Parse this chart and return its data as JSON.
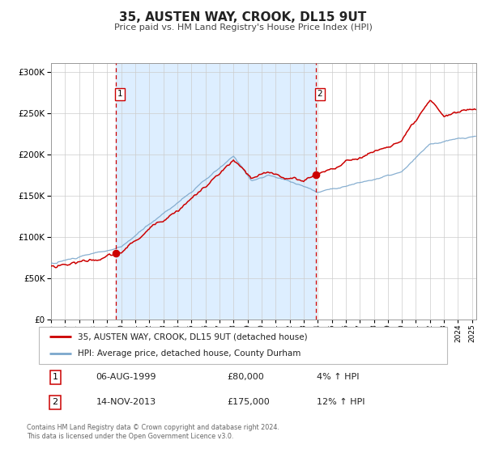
{
  "title": "35, AUSTEN WAY, CROOK, DL15 9UT",
  "subtitle": "Price paid vs. HM Land Registry's House Price Index (HPI)",
  "legend_line1": "35, AUSTEN WAY, CROOK, DL15 9UT (detached house)",
  "legend_line2": "HPI: Average price, detached house, County Durham",
  "sale1_label": "1",
  "sale1_date": "06-AUG-1999",
  "sale1_price": "£80,000",
  "sale1_hpi": "4% ↑ HPI",
  "sale1_year": 1999.6,
  "sale1_value": 80000,
  "sale2_label": "2",
  "sale2_date": "14-NOV-2013",
  "sale2_price": "£175,000",
  "sale2_hpi": "12% ↑ HPI",
  "sale2_year": 2013.87,
  "sale2_value": 175000,
  "footnote1": "Contains HM Land Registry data © Crown copyright and database right 2024.",
  "footnote2": "This data is licensed under the Open Government Licence v3.0.",
  "ylim": [
    0,
    310000
  ],
  "xlim_start": 1995.0,
  "xlim_end": 2025.3,
  "red_line_color": "#cc0000",
  "blue_line_color": "#7ba7cc",
  "vline_color": "#cc0000",
  "shade_color": "#ddeeff"
}
